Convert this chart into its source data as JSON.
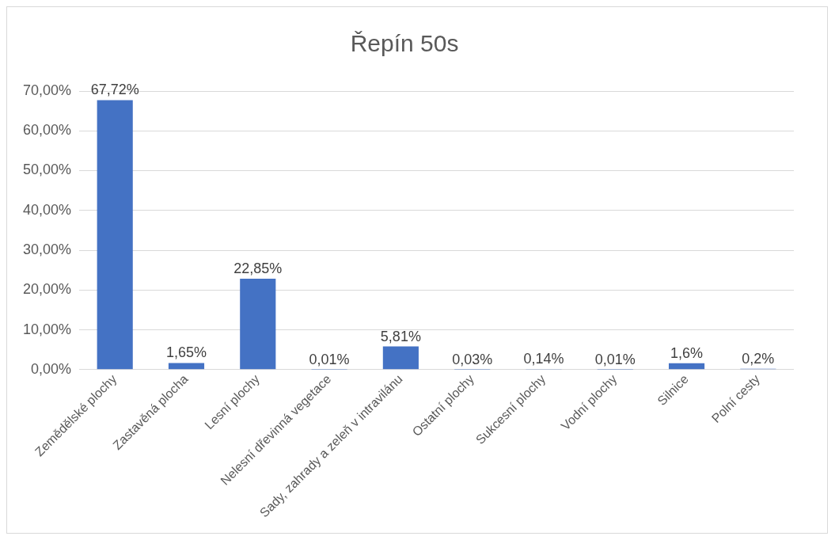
{
  "chart_data": {
    "type": "bar",
    "title": "Řepín 50s",
    "categories": [
      "Zemědělské plochy",
      "Zastavěná plocha",
      "Lesní plochy",
      "Nelesní dřevinná vegetace",
      "Sady, zahrady a zeleň v intravilánu",
      "Ostatní plochy",
      "Sukcesní plochy",
      "Vodní plochy",
      "Silnice",
      "Polní cesty"
    ],
    "values": [
      67.72,
      1.65,
      22.85,
      0.01,
      5.81,
      0.03,
      0.14,
      0.01,
      1.6,
      0.2
    ],
    "value_labels": [
      "67,72%",
      "1,65%",
      "22,85%",
      "0,01%",
      "5,81%",
      "0,03%",
      "0,14%",
      "0,01%",
      "1,6%",
      "0,2%"
    ],
    "color": "#4472c4",
    "ylim": [
      0,
      70
    ],
    "yticks": [
      {
        "value": 0,
        "label": "0,00%"
      },
      {
        "value": 10,
        "label": "10,00%"
      },
      {
        "value": 20,
        "label": "20,00%"
      },
      {
        "value": 30,
        "label": "30,00%"
      },
      {
        "value": 40,
        "label": "40,00%"
      },
      {
        "value": 50,
        "label": "50,00%"
      },
      {
        "value": 60,
        "label": "60,00%"
      },
      {
        "value": 70,
        "label": "70,00%"
      }
    ],
    "grid": "y",
    "legend": false
  }
}
